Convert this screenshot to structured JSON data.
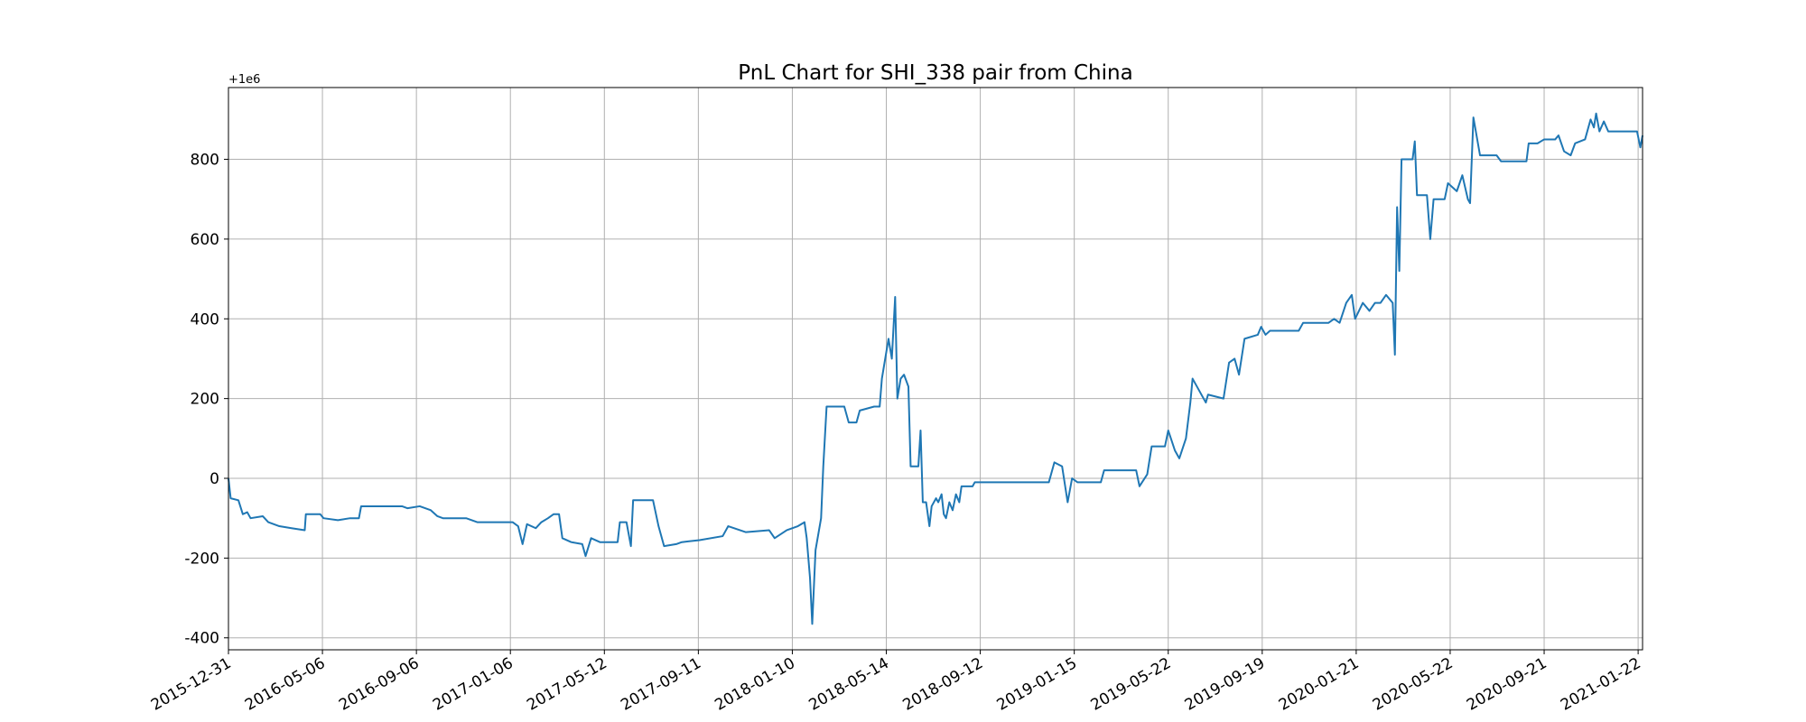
{
  "chart_data": {
    "type": "line",
    "title": "PnL Chart for SHI_338 pair from China",
    "y_offset_label": "+1e6",
    "color": "#1f77b4",
    "grid": true,
    "xlim": [
      0,
      1279
    ],
    "ylim": [
      -430,
      980
    ],
    "yticks": [
      -400,
      -200,
      0,
      200,
      400,
      600,
      800
    ],
    "xticks": [
      {
        "value": 0,
        "label": "2015-12-31"
      },
      {
        "value": 85,
        "label": "2016-05-06"
      },
      {
        "value": 170,
        "label": "2016-09-06"
      },
      {
        "value": 255,
        "label": "2017-01-06"
      },
      {
        "value": 340,
        "label": "2017-05-12"
      },
      {
        "value": 425,
        "label": "2017-09-11"
      },
      {
        "value": 510,
        "label": "2018-01-10"
      },
      {
        "value": 595,
        "label": "2018-05-14"
      },
      {
        "value": 680,
        "label": "2018-09-12"
      },
      {
        "value": 765,
        "label": "2019-01-15"
      },
      {
        "value": 850,
        "label": "2019-05-22"
      },
      {
        "value": 935,
        "label": "2019-09-19"
      },
      {
        "value": 1020,
        "label": "2020-01-21"
      },
      {
        "value": 1105,
        "label": "2020-05-22"
      },
      {
        "value": 1190,
        "label": "2020-09-21"
      },
      {
        "value": 1275,
        "label": "2021-01-22"
      }
    ],
    "x": [
      0,
      2,
      9,
      13,
      17,
      20,
      31,
      36,
      46,
      57,
      69,
      70,
      83,
      86,
      99,
      110,
      118,
      120,
      141,
      157,
      162,
      173,
      183,
      189,
      194,
      215,
      225,
      257,
      262,
      266,
      270,
      278,
      283,
      289,
      294,
      299,
      302,
      310,
      320,
      323,
      328,
      336,
      352,
      354,
      360,
      364,
      366,
      384,
      389,
      394,
      405,
      410,
      426,
      447,
      452,
      468,
      489,
      494,
      505,
      515,
      521,
      523,
      526,
      528,
      531,
      536,
      538,
      541,
      557,
      561,
      568,
      571,
      584,
      589,
      591,
      594,
      597,
      600,
      603,
      605,
      608,
      611,
      615,
      617,
      624,
      626,
      628,
      631,
      634,
      636,
      640,
      642,
      645,
      647,
      649,
      652,
      655,
      658,
      661,
      663,
      673,
      675,
      742,
      747,
      754,
      759,
      763,
      768,
      789,
      792,
      821,
      824,
      831,
      835,
      847,
      850,
      856,
      860,
      866,
      870,
      872,
      884,
      886,
      900,
      905,
      910,
      914,
      919,
      931,
      934,
      938,
      942,
      968,
      972,
      979,
      995,
      1000,
      1005,
      1011,
      1016,
      1019,
      1026,
      1032,
      1037,
      1042,
      1047,
      1053,
      1055,
      1057,
      1059,
      1061,
      1071,
      1073,
      1075,
      1084,
      1087,
      1090,
      1100,
      1103,
      1111,
      1116,
      1121,
      1123,
      1126,
      1132,
      1147,
      1151,
      1174,
      1176,
      1184,
      1190,
      1200,
      1203,
      1208,
      1214,
      1218,
      1227,
      1232,
      1235,
      1237,
      1240,
      1244,
      1248,
      1253,
      1274,
      1277,
      1279
    ],
    "values": [
      0,
      -50,
      -55,
      -90,
      -85,
      -100,
      -95,
      -110,
      -120,
      -125,
      -130,
      -90,
      -90,
      -100,
      -105,
      -100,
      -100,
      -70,
      -70,
      -70,
      -75,
      -70,
      -80,
      -95,
      -100,
      -100,
      -110,
      -110,
      -120,
      -165,
      -115,
      -125,
      -110,
      -100,
      -90,
      -90,
      -150,
      -160,
      -165,
      -195,
      -150,
      -160,
      -160,
      -110,
      -110,
      -170,
      -55,
      -55,
      -120,
      -170,
      -165,
      -160,
      -155,
      -145,
      -120,
      -135,
      -130,
      -150,
      -130,
      -120,
      -110,
      -150,
      -250,
      -365,
      -180,
      -100,
      30,
      180,
      180,
      140,
      140,
      170,
      180,
      180,
      250,
      300,
      350,
      300,
      455,
      200,
      250,
      260,
      230,
      30,
      30,
      120,
      -60,
      -60,
      -120,
      -70,
      -50,
      -60,
      -40,
      -90,
      -100,
      -60,
      -80,
      -40,
      -60,
      -20,
      -20,
      -10,
      -10,
      40,
      30,
      -60,
      0,
      -10,
      -10,
      20,
      20,
      -20,
      10,
      80,
      80,
      120,
      70,
      50,
      100,
      190,
      250,
      190,
      210,
      200,
      290,
      300,
      260,
      350,
      360,
      380,
      360,
      370,
      370,
      390,
      390,
      390,
      400,
      390,
      440,
      460,
      400,
      440,
      420,
      440,
      440,
      460,
      440,
      310,
      680,
      520,
      800,
      800,
      845,
      710,
      710,
      600,
      700,
      700,
      740,
      720,
      760,
      700,
      690,
      905,
      810,
      810,
      795,
      795,
      840,
      840,
      850,
      850,
      860,
      820,
      810,
      840,
      850,
      900,
      880,
      915,
      870,
      895,
      870,
      870,
      870,
      830,
      860
    ]
  }
}
